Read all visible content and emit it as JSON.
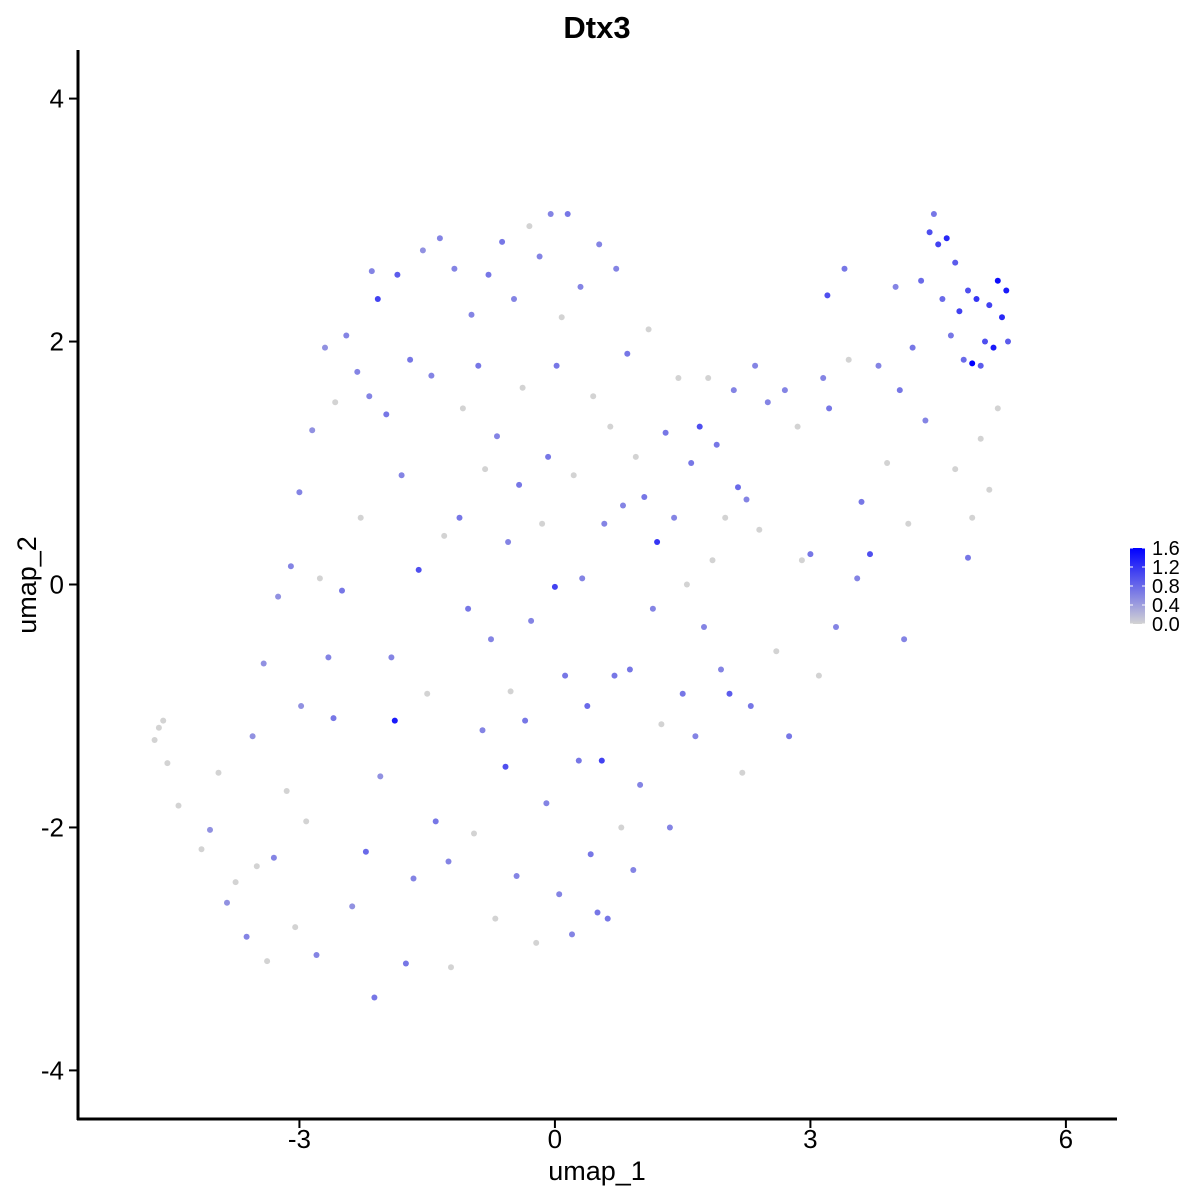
{
  "chart_data": {
    "type": "scatter",
    "title": "Dtx3",
    "xlabel": "umap_1",
    "ylabel": "umap_2",
    "xlim": [
      -5.6,
      6.6
    ],
    "ylim": [
      -4.4,
      4.4
    ],
    "x_ticks": [
      -3,
      0,
      3,
      6
    ],
    "y_ticks": [
      -4,
      -2,
      0,
      2,
      4
    ],
    "x_tick_labels": [
      "-3",
      "0",
      "3",
      "6"
    ],
    "y_tick_labels": [
      "-4",
      "-2",
      "0",
      "2",
      "4"
    ],
    "grid": false,
    "legend": {
      "type": "colorbar",
      "placement": "right",
      "range": [
        0,
        1.6
      ],
      "tick_values": [
        1.6,
        1.2,
        0.8,
        0.4,
        0.0
      ],
      "tick_labels": [
        "1.6",
        "1.2",
        "0.8",
        "0.4",
        "0.0"
      ],
      "low_color": "#d3d3d3",
      "high_color": "#0000ff"
    },
    "colors": {
      "low": "#d3d3d3",
      "high": "#0000ff"
    },
    "points": [
      {
        "x": -4.7,
        "y": -1.28,
        "expr": 0.0
      },
      {
        "x": -4.65,
        "y": -1.18,
        "expr": 0.0
      },
      {
        "x": -4.6,
        "y": -1.12,
        "expr": 0.0
      },
      {
        "x": -4.55,
        "y": -1.47,
        "expr": 0.0
      },
      {
        "x": -4.42,
        "y": -1.82,
        "expr": 0.0
      },
      {
        "x": -4.15,
        "y": -2.18,
        "expr": 0.0
      },
      {
        "x": -4.05,
        "y": -2.02,
        "expr": 0.5
      },
      {
        "x": -3.95,
        "y": -1.55,
        "expr": 0.0
      },
      {
        "x": -3.85,
        "y": -2.62,
        "expr": 0.5
      },
      {
        "x": -3.75,
        "y": -2.45,
        "expr": 0.0
      },
      {
        "x": -3.62,
        "y": -2.9,
        "expr": 0.6
      },
      {
        "x": -3.55,
        "y": -1.25,
        "expr": 0.5
      },
      {
        "x": -3.5,
        "y": -2.32,
        "expr": 0.0
      },
      {
        "x": -3.42,
        "y": -0.65,
        "expr": 0.5
      },
      {
        "x": -3.38,
        "y": -3.1,
        "expr": 0.0
      },
      {
        "x": -3.3,
        "y": -2.25,
        "expr": 0.6
      },
      {
        "x": -3.25,
        "y": -0.1,
        "expr": 0.5
      },
      {
        "x": -3.15,
        "y": -1.7,
        "expr": 0.0
      },
      {
        "x": -3.1,
        "y": 0.15,
        "expr": 0.6
      },
      {
        "x": -3.05,
        "y": -2.82,
        "expr": 0.0
      },
      {
        "x": -3.0,
        "y": 0.76,
        "expr": 0.6
      },
      {
        "x": -2.98,
        "y": -1.0,
        "expr": 0.5
      },
      {
        "x": -2.92,
        "y": -1.95,
        "expr": 0.0
      },
      {
        "x": -2.85,
        "y": 1.27,
        "expr": 0.5
      },
      {
        "x": -2.8,
        "y": -3.05,
        "expr": 0.6
      },
      {
        "x": -2.76,
        "y": 0.05,
        "expr": 0.0
      },
      {
        "x": -2.7,
        "y": 1.95,
        "expr": 0.5
      },
      {
        "x": -2.66,
        "y": -0.6,
        "expr": 0.6
      },
      {
        "x": -2.6,
        "y": -1.1,
        "expr": 0.7
      },
      {
        "x": -2.58,
        "y": 1.5,
        "expr": 0.0
      },
      {
        "x": -2.5,
        "y": -0.05,
        "expr": 0.7
      },
      {
        "x": -2.45,
        "y": 2.05,
        "expr": 0.6
      },
      {
        "x": -2.38,
        "y": -2.65,
        "expr": 0.5
      },
      {
        "x": -2.32,
        "y": 1.75,
        "expr": 0.6
      },
      {
        "x": -2.28,
        "y": 0.55,
        "expr": 0.0
      },
      {
        "x": -2.22,
        "y": -2.2,
        "expr": 0.8
      },
      {
        "x": -2.18,
        "y": 1.55,
        "expr": 0.6
      },
      {
        "x": -2.15,
        "y": 2.58,
        "expr": 0.6
      },
      {
        "x": -2.12,
        "y": -3.4,
        "expr": 0.7
      },
      {
        "x": -2.08,
        "y": 2.35,
        "expr": 1.1
      },
      {
        "x": -2.05,
        "y": -1.58,
        "expr": 0.5
      },
      {
        "x": -1.98,
        "y": 1.4,
        "expr": 0.7
      },
      {
        "x": -1.92,
        "y": -0.6,
        "expr": 0.6
      },
      {
        "x": -1.88,
        "y": -1.12,
        "expr": 1.4
      },
      {
        "x": -1.85,
        "y": 2.55,
        "expr": 0.9
      },
      {
        "x": -1.8,
        "y": 0.9,
        "expr": 0.6
      },
      {
        "x": -1.75,
        "y": -3.12,
        "expr": 0.7
      },
      {
        "x": -1.7,
        "y": 1.85,
        "expr": 0.7
      },
      {
        "x": -1.66,
        "y": -2.42,
        "expr": 0.6
      },
      {
        "x": -1.6,
        "y": 0.12,
        "expr": 1.0
      },
      {
        "x": -1.55,
        "y": 2.75,
        "expr": 0.5
      },
      {
        "x": -1.5,
        "y": -0.9,
        "expr": 0.0
      },
      {
        "x": -1.45,
        "y": 1.72,
        "expr": 0.6
      },
      {
        "x": -1.4,
        "y": -1.95,
        "expr": 0.7
      },
      {
        "x": -1.35,
        "y": 2.85,
        "expr": 0.6
      },
      {
        "x": -1.3,
        "y": 0.4,
        "expr": 0.0
      },
      {
        "x": -1.25,
        "y": -2.28,
        "expr": 0.6
      },
      {
        "x": -1.22,
        "y": -3.15,
        "expr": 0.0
      },
      {
        "x": -1.18,
        "y": 2.6,
        "expr": 0.6
      },
      {
        "x": -1.12,
        "y": 0.55,
        "expr": 0.7
      },
      {
        "x": -1.08,
        "y": 1.45,
        "expr": 0.0
      },
      {
        "x": -1.02,
        "y": -0.2,
        "expr": 0.7
      },
      {
        "x": -0.98,
        "y": 2.22,
        "expr": 0.6
      },
      {
        "x": -0.95,
        "y": -2.05,
        "expr": 0.0
      },
      {
        "x": -0.9,
        "y": 1.8,
        "expr": 0.7
      },
      {
        "x": -0.85,
        "y": -1.2,
        "expr": 0.6
      },
      {
        "x": -0.82,
        "y": 0.95,
        "expr": 0.0
      },
      {
        "x": -0.78,
        "y": 2.55,
        "expr": 0.7
      },
      {
        "x": -0.75,
        "y": -0.45,
        "expr": 0.6
      },
      {
        "x": -0.7,
        "y": -2.75,
        "expr": 0.0
      },
      {
        "x": -0.68,
        "y": 1.22,
        "expr": 0.6
      },
      {
        "x": -0.62,
        "y": 2.82,
        "expr": 0.7
      },
      {
        "x": -0.58,
        "y": -1.5,
        "expr": 1.0
      },
      {
        "x": -0.55,
        "y": 0.35,
        "expr": 0.6
      },
      {
        "x": -0.52,
        "y": -0.88,
        "expr": 0.0
      },
      {
        "x": -0.48,
        "y": 2.35,
        "expr": 0.6
      },
      {
        "x": -0.45,
        "y": -2.4,
        "expr": 0.6
      },
      {
        "x": -0.42,
        "y": 0.82,
        "expr": 0.7
      },
      {
        "x": -0.38,
        "y": 1.62,
        "expr": 0.0
      },
      {
        "x": -0.35,
        "y": -1.12,
        "expr": 0.7
      },
      {
        "x": -0.3,
        "y": 2.95,
        "expr": 0.0
      },
      {
        "x": -0.28,
        "y": -0.3,
        "expr": 0.6
      },
      {
        "x": -0.22,
        "y": -2.95,
        "expr": 0.0
      },
      {
        "x": -0.18,
        "y": 2.7,
        "expr": 0.6
      },
      {
        "x": -0.15,
        "y": 0.5,
        "expr": 0.0
      },
      {
        "x": -0.1,
        "y": -1.8,
        "expr": 0.6
      },
      {
        "x": -0.08,
        "y": 1.05,
        "expr": 0.7
      },
      {
        "x": -0.05,
        "y": 3.05,
        "expr": 0.6
      },
      {
        "x": 0.0,
        "y": -0.02,
        "expr": 1.1
      },
      {
        "x": 0.02,
        "y": 1.8,
        "expr": 0.7
      },
      {
        "x": 0.05,
        "y": -2.55,
        "expr": 0.6
      },
      {
        "x": 0.08,
        "y": 2.2,
        "expr": 0.0
      },
      {
        "x": 0.12,
        "y": -0.75,
        "expr": 0.7
      },
      {
        "x": 0.15,
        "y": 3.05,
        "expr": 0.7
      },
      {
        "x": 0.2,
        "y": -2.88,
        "expr": 0.6
      },
      {
        "x": 0.22,
        "y": 0.9,
        "expr": 0.0
      },
      {
        "x": 0.28,
        "y": -1.45,
        "expr": 0.7
      },
      {
        "x": 0.3,
        "y": 2.45,
        "expr": 0.6
      },
      {
        "x": 0.32,
        "y": 0.05,
        "expr": 0.6
      },
      {
        "x": 0.38,
        "y": -1.0,
        "expr": 0.8
      },
      {
        "x": 0.42,
        "y": -2.22,
        "expr": 0.7
      },
      {
        "x": 0.45,
        "y": 1.55,
        "expr": 0.0
      },
      {
        "x": 0.5,
        "y": -2.7,
        "expr": 0.7
      },
      {
        "x": 0.52,
        "y": 2.8,
        "expr": 0.6
      },
      {
        "x": 0.55,
        "y": -1.45,
        "expr": 1.1
      },
      {
        "x": 0.58,
        "y": 0.5,
        "expr": 0.6
      },
      {
        "x": 0.62,
        "y": -2.75,
        "expr": 0.7
      },
      {
        "x": 0.65,
        "y": 1.3,
        "expr": 0.0
      },
      {
        "x": 0.7,
        "y": -0.75,
        "expr": 0.7
      },
      {
        "x": 0.72,
        "y": 2.6,
        "expr": 0.6
      },
      {
        "x": 0.78,
        "y": -2.0,
        "expr": 0.0
      },
      {
        "x": 0.8,
        "y": 0.65,
        "expr": 0.6
      },
      {
        "x": 0.85,
        "y": 1.9,
        "expr": 0.7
      },
      {
        "x": 0.88,
        "y": -0.7,
        "expr": 0.7
      },
      {
        "x": 0.92,
        "y": -2.35,
        "expr": 0.6
      },
      {
        "x": 0.95,
        "y": 1.05,
        "expr": 0.0
      },
      {
        "x": 1.0,
        "y": -1.65,
        "expr": 0.6
      },
      {
        "x": 1.05,
        "y": 0.72,
        "expr": 0.7
      },
      {
        "x": 1.1,
        "y": 2.1,
        "expr": 0.0
      },
      {
        "x": 1.15,
        "y": -0.2,
        "expr": 0.6
      },
      {
        "x": 1.2,
        "y": 0.35,
        "expr": 1.2
      },
      {
        "x": 1.25,
        "y": -1.15,
        "expr": 0.0
      },
      {
        "x": 1.3,
        "y": 1.25,
        "expr": 0.7
      },
      {
        "x": 1.35,
        "y": -2.0,
        "expr": 0.6
      },
      {
        "x": 1.4,
        "y": 0.55,
        "expr": 0.6
      },
      {
        "x": 1.45,
        "y": 1.7,
        "expr": 0.0
      },
      {
        "x": 1.5,
        "y": -0.9,
        "expr": 0.7
      },
      {
        "x": 1.55,
        "y": 0.0,
        "expr": 0.0
      },
      {
        "x": 1.6,
        "y": 1.0,
        "expr": 0.7
      },
      {
        "x": 1.65,
        "y": -1.25,
        "expr": 0.6
      },
      {
        "x": 1.7,
        "y": 1.3,
        "expr": 1.0
      },
      {
        "x": 1.75,
        "y": -0.35,
        "expr": 0.6
      },
      {
        "x": 1.8,
        "y": 1.7,
        "expr": 0.0
      },
      {
        "x": 1.85,
        "y": 0.2,
        "expr": 0.0
      },
      {
        "x": 1.9,
        "y": 1.15,
        "expr": 0.7
      },
      {
        "x": 1.95,
        "y": -0.7,
        "expr": 0.6
      },
      {
        "x": 2.0,
        "y": 0.55,
        "expr": 0.0
      },
      {
        "x": 2.05,
        "y": -0.9,
        "expr": 0.9
      },
      {
        "x": 2.1,
        "y": 1.6,
        "expr": 0.6
      },
      {
        "x": 2.15,
        "y": 0.8,
        "expr": 0.8
      },
      {
        "x": 2.2,
        "y": -1.55,
        "expr": 0.0
      },
      {
        "x": 2.25,
        "y": 0.7,
        "expr": 0.6
      },
      {
        "x": 2.3,
        "y": -1.0,
        "expr": 0.7
      },
      {
        "x": 2.35,
        "y": 1.8,
        "expr": 0.6
      },
      {
        "x": 2.4,
        "y": 0.45,
        "expr": 0.0
      },
      {
        "x": 2.5,
        "y": 1.5,
        "expr": 0.6
      },
      {
        "x": 2.6,
        "y": -0.55,
        "expr": 0.0
      },
      {
        "x": 2.7,
        "y": 1.6,
        "expr": 0.6
      },
      {
        "x": 2.75,
        "y": -1.25,
        "expr": 0.7
      },
      {
        "x": 2.85,
        "y": 1.3,
        "expr": 0.0
      },
      {
        "x": 2.9,
        "y": 0.2,
        "expr": 0.0
      },
      {
        "x": 3.0,
        "y": 0.25,
        "expr": 0.7
      },
      {
        "x": 3.1,
        "y": -0.75,
        "expr": 0.0
      },
      {
        "x": 3.15,
        "y": 1.7,
        "expr": 0.6
      },
      {
        "x": 3.2,
        "y": 2.38,
        "expr": 1.0
      },
      {
        "x": 3.22,
        "y": 1.45,
        "expr": 0.7
      },
      {
        "x": 3.3,
        "y": -0.35,
        "expr": 0.6
      },
      {
        "x": 3.4,
        "y": 2.6,
        "expr": 0.7
      },
      {
        "x": 3.45,
        "y": 1.85,
        "expr": 0.0
      },
      {
        "x": 3.55,
        "y": 0.05,
        "expr": 0.6
      },
      {
        "x": 3.6,
        "y": 0.68,
        "expr": 0.7
      },
      {
        "x": 3.7,
        "y": 0.25,
        "expr": 1.0
      },
      {
        "x": 3.8,
        "y": 1.8,
        "expr": 0.6
      },
      {
        "x": 3.9,
        "y": 1.0,
        "expr": 0.0
      },
      {
        "x": 4.0,
        "y": 2.45,
        "expr": 0.6
      },
      {
        "x": 4.05,
        "y": 1.6,
        "expr": 0.7
      },
      {
        "x": 4.1,
        "y": -0.45,
        "expr": 0.6
      },
      {
        "x": 4.15,
        "y": 0.5,
        "expr": 0.0
      },
      {
        "x": 4.2,
        "y": 1.95,
        "expr": 0.7
      },
      {
        "x": 4.3,
        "y": 2.5,
        "expr": 0.8
      },
      {
        "x": 4.35,
        "y": 1.35,
        "expr": 0.6
      },
      {
        "x": 4.4,
        "y": 2.9,
        "expr": 1.0
      },
      {
        "x": 4.45,
        "y": 3.05,
        "expr": 0.7
      },
      {
        "x": 4.5,
        "y": 2.8,
        "expr": 1.1
      },
      {
        "x": 4.55,
        "y": 2.35,
        "expr": 0.8
      },
      {
        "x": 4.6,
        "y": 2.85,
        "expr": 1.3
      },
      {
        "x": 4.65,
        "y": 2.05,
        "expr": 0.7
      },
      {
        "x": 4.7,
        "y": 2.65,
        "expr": 0.9
      },
      {
        "x": 4.75,
        "y": 2.25,
        "expr": 1.1
      },
      {
        "x": 4.8,
        "y": 1.85,
        "expr": 0.8
      },
      {
        "x": 4.85,
        "y": 2.42,
        "expr": 1.0
      },
      {
        "x": 4.9,
        "y": 1.82,
        "expr": 1.6
      },
      {
        "x": 4.95,
        "y": 2.35,
        "expr": 1.2
      },
      {
        "x": 5.0,
        "y": 1.8,
        "expr": 0.9
      },
      {
        "x": 5.05,
        "y": 2.0,
        "expr": 1.0
      },
      {
        "x": 5.1,
        "y": 2.3,
        "expr": 1.1
      },
      {
        "x": 5.15,
        "y": 1.95,
        "expr": 1.4
      },
      {
        "x": 5.2,
        "y": 2.5,
        "expr": 1.5
      },
      {
        "x": 5.25,
        "y": 2.2,
        "expr": 1.3
      },
      {
        "x": 5.3,
        "y": 2.42,
        "expr": 1.4
      },
      {
        "x": 5.32,
        "y": 2.0,
        "expr": 0.9
      },
      {
        "x": 5.2,
        "y": 1.45,
        "expr": 0.0
      },
      {
        "x": 5.0,
        "y": 1.2,
        "expr": 0.0
      },
      {
        "x": 4.9,
        "y": 0.55,
        "expr": 0.0
      },
      {
        "x": 5.1,
        "y": 0.78,
        "expr": 0.0
      },
      {
        "x": 4.85,
        "y": 0.22,
        "expr": 0.7
      },
      {
        "x": 4.7,
        "y": 0.95,
        "expr": 0.0
      }
    ]
  }
}
